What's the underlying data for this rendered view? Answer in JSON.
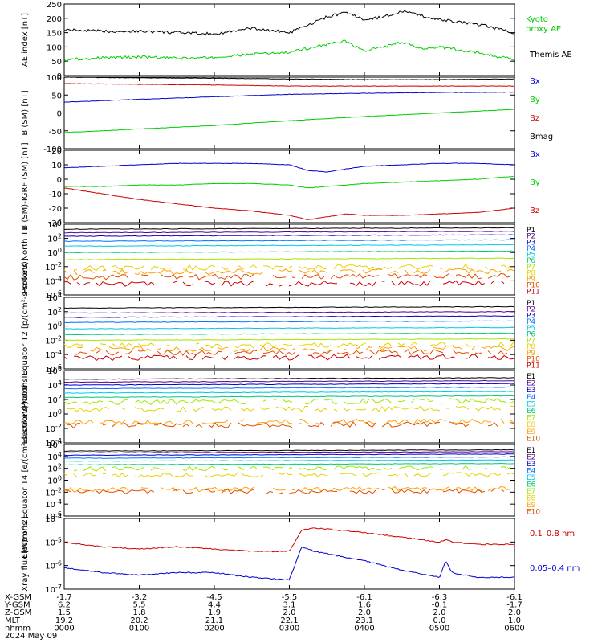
{
  "colors": {
    "black": "#000000",
    "green": "#00cc00",
    "blue": "#0000cc",
    "red": "#cc0000",
    "channels": [
      "#000000",
      "#5a0090",
      "#0000cc",
      "#0070ff",
      "#00c8e6",
      "#00c878",
      "#a0e600",
      "#e6d200",
      "#ffa000",
      "#e05000",
      "#cc0000"
    ]
  },
  "chart_data": [
    {
      "type": "line",
      "panel": "ae",
      "ylabel": "AE index [nT]",
      "ylim": [
        0,
        250
      ],
      "yticks": [
        "0",
        "50",
        "100",
        "150",
        "200",
        "250"
      ],
      "x": [
        "0000",
        "0030",
        "0100",
        "0130",
        "0200",
        "0230",
        "0300",
        "0315",
        "0330",
        "0345",
        "0400",
        "0415",
        "0430",
        "0445",
        "0500",
        "0530",
        "0600"
      ],
      "series": [
        {
          "name": "Kyoto proxy AE",
          "color": "green",
          "values": [
            55,
            62,
            65,
            60,
            62,
            75,
            80,
            95,
            110,
            120,
            85,
            100,
            115,
            95,
            100,
            80,
            55
          ]
        },
        {
          "name": "Themis AE",
          "color": "black",
          "values": [
            160,
            155,
            155,
            150,
            145,
            165,
            150,
            175,
            205,
            220,
            195,
            205,
            225,
            210,
            195,
            180,
            150
          ]
        }
      ],
      "legend": [
        "Kyoto",
        "proxy AE",
        "Themis AE"
      ]
    },
    {
      "type": "line",
      "panel": "b-sm",
      "ylabel": "B (SM) [nT]",
      "ylim": [
        -100,
        100
      ],
      "yticks": [
        "-100",
        "-50",
        "0",
        "50",
        "100"
      ],
      "x": [
        "0000",
        "0100",
        "0200",
        "0300",
        "0400",
        "0500",
        "0600"
      ],
      "series": [
        {
          "name": "Bx",
          "color": "blue",
          "values": [
            30,
            38,
            45,
            52,
            55,
            57,
            58
          ]
        },
        {
          "name": "By",
          "color": "green",
          "values": [
            -55,
            -45,
            -35,
            -22,
            -10,
            0,
            10
          ]
        },
        {
          "name": "Bz",
          "color": "red",
          "values": [
            82,
            80,
            78,
            75,
            75,
            75,
            75
          ]
        },
        {
          "name": "Bmag",
          "color": "black",
          "values": [
            100,
            98,
            97,
            95,
            93,
            93,
            95
          ]
        }
      ],
      "legend": [
        "Bx",
        "By",
        "Bz",
        "Bmag"
      ]
    },
    {
      "type": "line",
      "panel": "b-igrf",
      "ylabel": "B (SM)-IGRF (SM) [nT]",
      "ylim": [
        -30,
        20
      ],
      "yticks": [
        "-30",
        "-20",
        "-10",
        "0",
        "10",
        "20"
      ],
      "x": [
        "0000",
        "0030",
        "0100",
        "0130",
        "0200",
        "0230",
        "0300",
        "0315",
        "0330",
        "0345",
        "0400",
        "0430",
        "0500",
        "0530",
        "0600"
      ],
      "series": [
        {
          "name": "Bx",
          "color": "blue",
          "values": [
            8,
            9,
            10,
            11,
            11,
            11,
            10,
            6,
            5,
            7,
            9,
            10,
            11,
            11,
            10
          ]
        },
        {
          "name": "By",
          "color": "green",
          "values": [
            -5,
            -5,
            -4,
            -4,
            -3,
            -3,
            -4,
            -6,
            -5,
            -4,
            -3,
            -2,
            -1,
            0,
            2
          ]
        },
        {
          "name": "Bz",
          "color": "red",
          "values": [
            -6,
            -10,
            -14,
            -17,
            -20,
            -22,
            -25,
            -28,
            -26,
            -24,
            -25,
            -25,
            -24,
            -23,
            -20
          ]
        }
      ],
      "legend": [
        "Bx",
        "By",
        "Bz"
      ]
    },
    {
      "type": "line",
      "panel": "protons-north",
      "ylabel": "Protons North T1",
      "log": true,
      "ylim": [
        -6,
        4
      ],
      "yticks": [
        "10^-6",
        "10^-4",
        "10^-2",
        "10^0",
        "10^2",
        "10^4"
      ],
      "channel_levels": [
        3.3,
        2.8,
        2.3,
        1.6,
        0.9,
        0,
        -1,
        -2.2,
        -2.8,
        -3.5,
        -4.5
      ],
      "legend": [
        "P1",
        "P2",
        "P3",
        "P4",
        "P5",
        "P6",
        "P7",
        "P8",
        "P9",
        "P10",
        "P11"
      ]
    },
    {
      "type": "line",
      "panel": "protons-equator",
      "ylabel": "Protons Equator T2 [p/(cm²-s-sr-keV)]",
      "log": true,
      "ylim": [
        -6,
        4
      ],
      "yticks": [
        "10^-6",
        "10^-4",
        "10^-2",
        "10^0",
        "10^2",
        "10^4"
      ],
      "channel_levels": [
        2.5,
        1.8,
        1.2,
        0.5,
        -0.4,
        -1.2,
        -2,
        -2.8,
        -3.3,
        -3.8,
        -4.5
      ],
      "legend": [
        "P1",
        "P2",
        "P3",
        "P4",
        "P5",
        "P6",
        "P7",
        "P8",
        "P9",
        "P10",
        "P11"
      ]
    },
    {
      "type": "line",
      "panel": "electrons-north",
      "ylabel": "Electrons North T3",
      "log": true,
      "ylim": [
        -4,
        6
      ],
      "yticks": [
        "10^-4",
        "10^-2",
        "10^0",
        "10^2",
        "10^4",
        "10^6"
      ],
      "channel_levels": [
        4.8,
        4.4,
        4.0,
        3.5,
        2.9,
        2.3,
        1.6,
        0.6,
        -1.2,
        -1.6
      ],
      "legend": [
        "E1",
        "E2",
        "E3",
        "E4",
        "E5",
        "E6",
        "E7",
        "E8",
        "E9",
        "E10"
      ]
    },
    {
      "type": "line",
      "panel": "electrons-equator",
      "ylabel": "Electrons Equator T4 [e/(cm²-s-sr-keV)]",
      "log": true,
      "ylim": [
        -6,
        6
      ],
      "yticks": [
        "10^-6",
        "10^-4",
        "10^-2",
        "10^0",
        "10^2",
        "10^4",
        "10^6"
      ],
      "channel_levels": [
        4.9,
        4.6,
        4.2,
        3.7,
        3.2,
        2.6,
        1.9,
        0.8,
        -1.6,
        -2
      ],
      "legend": [
        "E1",
        "E2",
        "E3",
        "E4",
        "E5",
        "E6",
        "E7",
        "E8",
        "E9",
        "E10"
      ]
    },
    {
      "type": "line",
      "panel": "xray",
      "ylabel": "Xray flux [W/m^2]",
      "log": true,
      "ylim": [
        -7,
        -4
      ],
      "yticks": [
        "10^-7",
        "10^-6",
        "10^-5",
        "10^-4"
      ],
      "x": [
        "0000",
        "0030",
        "0100",
        "0130",
        "0200",
        "0230",
        "0300",
        "0310",
        "0320",
        "0340",
        "0400",
        "0430",
        "0500",
        "0505",
        "0510",
        "0530",
        "0600"
      ],
      "series": [
        {
          "name": "0.1–0.8 nm",
          "color": "red",
          "values": [
            -5.0,
            -5.2,
            -5.3,
            -5.2,
            -5.3,
            -5.4,
            -5.4,
            -4.5,
            -4.4,
            -4.5,
            -4.6,
            -4.8,
            -5.0,
            -4.9,
            -5.0,
            -5.1,
            -5.1
          ]
        },
        {
          "name": "0.05–0.4 nm",
          "color": "blue",
          "values": [
            -6.1,
            -6.3,
            -6.4,
            -6.3,
            -6.3,
            -6.5,
            -6.6,
            -5.2,
            -5.4,
            -5.6,
            -5.8,
            -6.2,
            -6.5,
            -5.8,
            -6.3,
            -6.5,
            -6.5
          ]
        }
      ],
      "legend": [
        "0.1–0.8 nm",
        "0.05–0.4 nm"
      ]
    }
  ],
  "ephemeris": {
    "row_labels": [
      "X-GSM",
      "Y-GSM",
      "Z-GSM",
      "MLT",
      "hhmm",
      "2024 May 09"
    ],
    "columns": [
      [
        "-1.7",
        "6.2",
        "1.5",
        "19.2",
        "0000"
      ],
      [
        "-3.2",
        "5.5",
        "1.8",
        "20.2",
        "0100"
      ],
      [
        "-4.5",
        "4.4",
        "1.9",
        "21.1",
        "0200"
      ],
      [
        "-5.5",
        "3.1",
        "2.0",
        "22.1",
        "0300"
      ],
      [
        "-6.1",
        "1.6",
        "2.0",
        "23.1",
        "0400"
      ],
      [
        "-6.3",
        "-0.1",
        "2.0",
        "0.0",
        "0500"
      ],
      [
        "-6.1",
        "-1.7",
        "2.0",
        "1.0",
        "0600"
      ]
    ]
  }
}
